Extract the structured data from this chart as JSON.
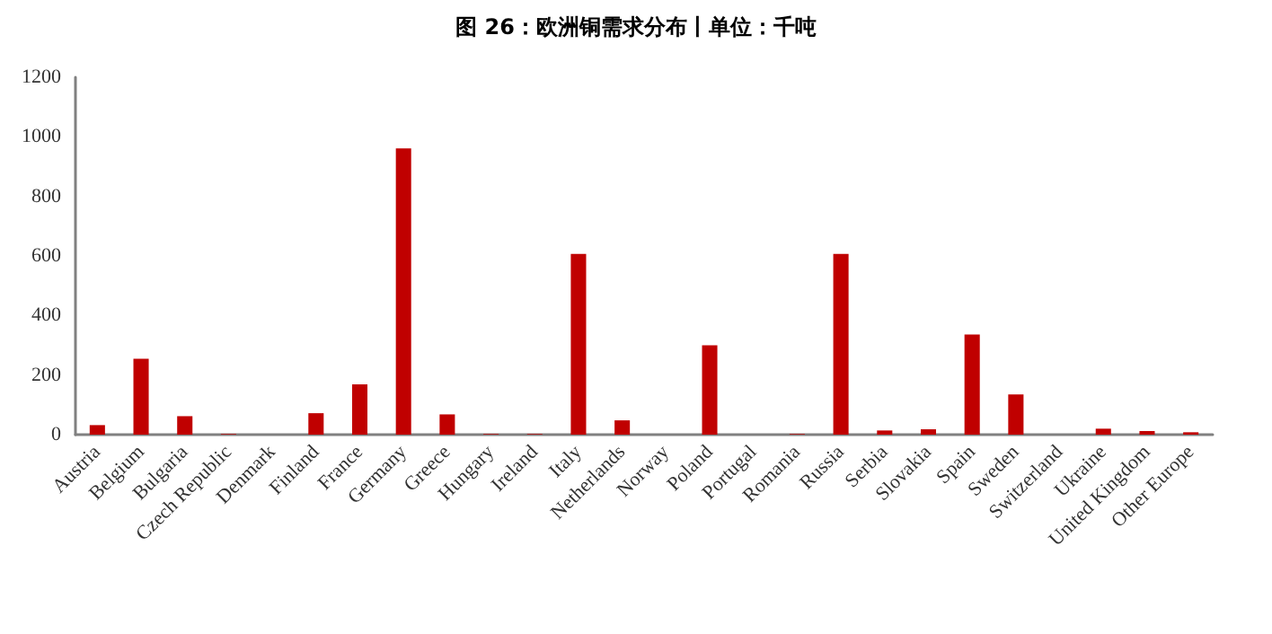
{
  "chart_data": {
    "type": "bar",
    "title": "图 26：欧洲铜需求分布丨单位：千吨",
    "categories": [
      "Austria",
      "Belgium",
      "Bulgaria",
      "Czech Republic",
      "Denmark",
      "Finland",
      "France",
      "Germany",
      "Greece",
      "Hungary",
      "Ireland",
      "Italy",
      "Netherlands",
      "Norway",
      "Poland",
      "Portugal",
      "Romania",
      "Russia",
      "Serbia",
      "Slovakia",
      "Spain",
      "Sweden",
      "Switzerland",
      "Ukraine",
      "United Kingdom",
      "Other Europe"
    ],
    "values": [
      32,
      255,
      62,
      2,
      null,
      72,
      169,
      961,
      68,
      2,
      2,
      607,
      48,
      null,
      300,
      null,
      2,
      607,
      14,
      18,
      336,
      135,
      null,
      20,
      12,
      8
    ],
    "color": "#c00000",
    "ylim": [
      0,
      1200
    ],
    "yticks": [
      0,
      200,
      400,
      600,
      800,
      1000,
      1200
    ],
    "grid": false
  }
}
